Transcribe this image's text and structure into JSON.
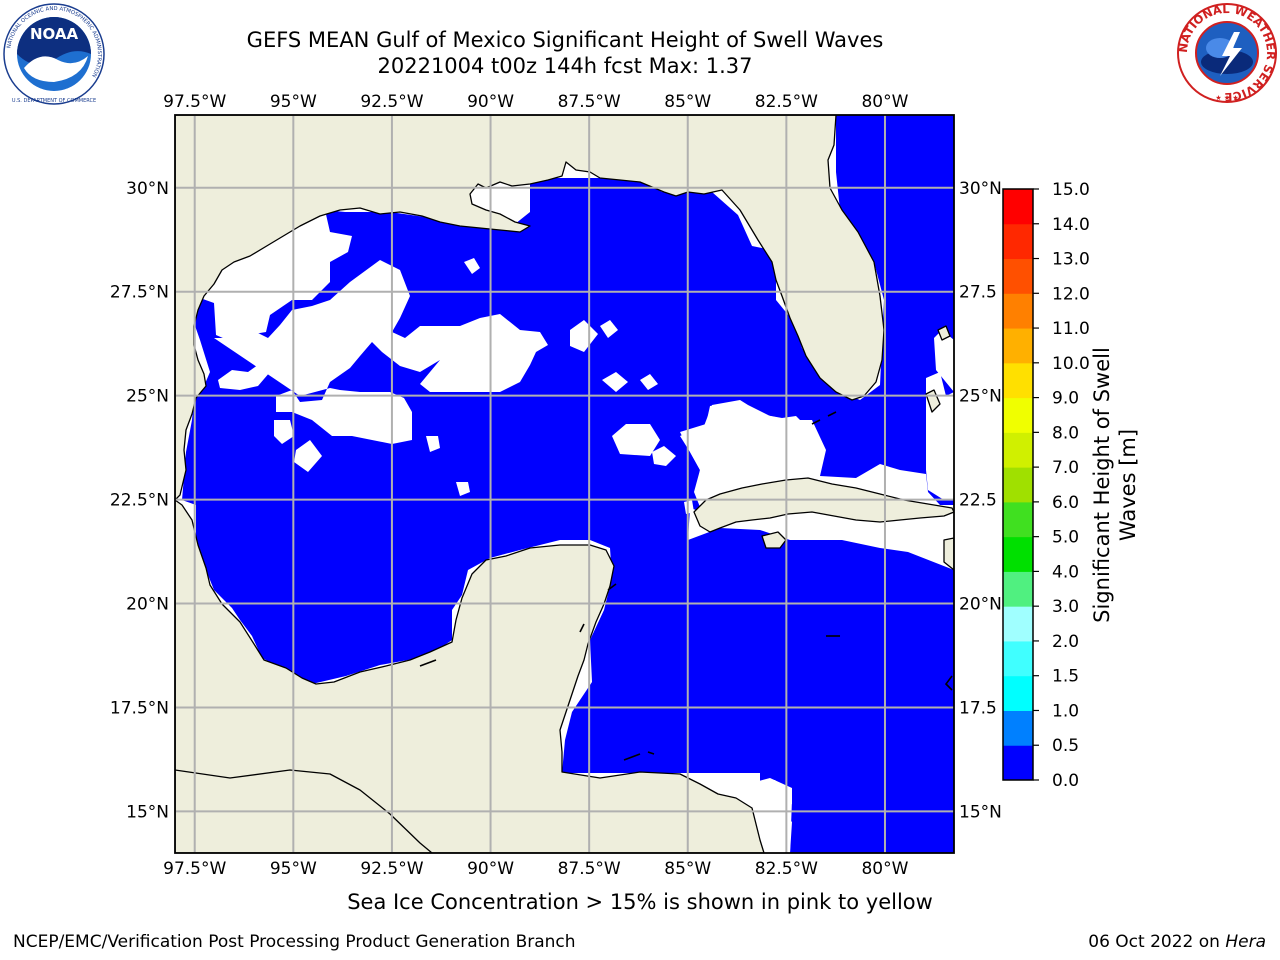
{
  "header": {
    "title_line1": "GEFS MEAN Gulf of Mexico Significant Height of Swell Waves",
    "title_line2": "20221004 t00z 144h fcst   Max: 1.37"
  },
  "logos": {
    "left": "NOAA",
    "left_ring_text": "NATIONAL OCEANIC AND ATMOSPHERIC ADMINISTRATION",
    "left_bottom_text": "U.S. DEPARTMENT OF COMMERCE",
    "right_ring_text": "NATIONAL WEATHER SERVICE"
  },
  "map": {
    "lon_labels": [
      "97.5°W",
      "95°W",
      "92.5°W",
      "90°W",
      "87.5°W",
      "85°W",
      "82.5°W",
      "80°W"
    ],
    "lat_labels": [
      "30°N",
      "27.5°N",
      "25°N",
      "22.5°N",
      "20°N",
      "17.5°N",
      "15°N"
    ],
    "lat_labels_right": [
      "30°N",
      "27.5",
      "25°N",
      "22.5",
      "20°N",
      "17.5",
      "15°N"
    ],
    "lon_range": [
      -98,
      -78.25
    ],
    "lat_range": [
      14,
      31.75
    ],
    "colors": {
      "land": "#eeeedc",
      "swell_0_0.5": "#0000ff",
      "swell_0.5_1.0": "#0080ff",
      "swell_1.0_1.5": "#00ffff",
      "no_data": "#ffffff"
    }
  },
  "colorbar": {
    "label": "Significant Height of Swell Waves [m]",
    "label_line1": "Significant Height of Swell",
    "label_line2": "Waves [m]",
    "ticks": [
      "15.0",
      "14.0",
      "13.0",
      "12.0",
      "11.0",
      "10.0",
      "9.0",
      "8.0",
      "7.0",
      "6.0",
      "5.0",
      "4.0",
      "3.0",
      "2.0",
      "1.5",
      "1.0",
      "0.5",
      "0.0"
    ],
    "colors_bottom_to_top": [
      "#0000ff",
      "#0080ff",
      "#00ffff",
      "#40ffff",
      "#a0ffff",
      "#50f080",
      "#00e000",
      "#40e020",
      "#a0e000",
      "#d0f000",
      "#f0ff00",
      "#ffe000",
      "#ffb000",
      "#ff8000",
      "#ff5000",
      "#ff2800",
      "#ff0000"
    ]
  },
  "footer": {
    "note": "Sea Ice Concentration > 15% is shown in pink to yellow",
    "credit": "NCEP/EMC/Verification Post Processing Product Generation Branch",
    "date": "06 Oct 2022 on ",
    "host": "Hera"
  }
}
